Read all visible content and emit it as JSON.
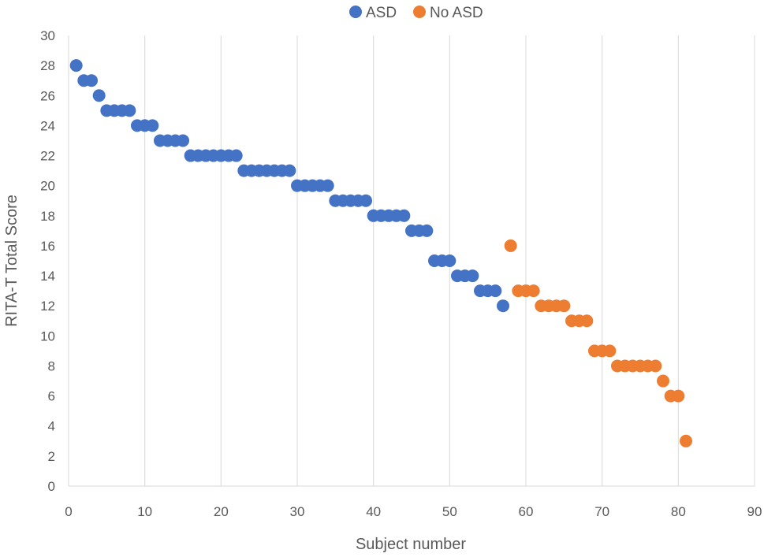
{
  "chart_data": {
    "type": "scatter",
    "title": "",
    "xlabel": "Subject number",
    "ylabel": "RITA-T Total Score",
    "xlim": [
      0,
      90
    ],
    "ylim": [
      0,
      30
    ],
    "xticks": [
      "0",
      "10",
      "20",
      "30",
      "40",
      "50",
      "60",
      "70",
      "80",
      "90"
    ],
    "yticks": [
      "0",
      "2",
      "4",
      "6",
      "8",
      "10",
      "12",
      "14",
      "16",
      "18",
      "20",
      "22",
      "24",
      "26",
      "28",
      "30"
    ],
    "grid": "vertical",
    "legend_position": "top-center",
    "series": [
      {
        "name": "ASD",
        "color": "#4472c4",
        "x": [
          1,
          2,
          3,
          4,
          5,
          6,
          7,
          8,
          9,
          10,
          11,
          12,
          13,
          14,
          15,
          16,
          17,
          18,
          19,
          20,
          21,
          22,
          23,
          24,
          25,
          26,
          27,
          28,
          29,
          30,
          31,
          32,
          33,
          34,
          35,
          36,
          37,
          38,
          39,
          40,
          41,
          42,
          43,
          44,
          45,
          46,
          47,
          48,
          49,
          50,
          51,
          52,
          53,
          54,
          55,
          56,
          57
        ],
        "y": [
          28,
          27,
          27,
          26,
          25,
          25,
          25,
          25,
          24,
          24,
          24,
          23,
          23,
          23,
          23,
          22,
          22,
          22,
          22,
          22,
          22,
          22,
          21,
          21,
          21,
          21,
          21,
          21,
          21,
          20,
          20,
          20,
          20,
          20,
          19,
          19,
          19,
          19,
          19,
          18,
          18,
          18,
          18,
          18,
          17,
          17,
          17,
          15,
          15,
          15,
          14,
          14,
          14,
          13,
          13,
          13,
          12
        ]
      },
      {
        "name": "No ASD",
        "color": "#ed7d31",
        "x": [
          58,
          59,
          60,
          61,
          62,
          63,
          64,
          65,
          66,
          67,
          68,
          69,
          70,
          71,
          72,
          73,
          74,
          75,
          76,
          77,
          78,
          79,
          80,
          81
        ],
        "y": [
          16,
          13,
          13,
          13,
          12,
          12,
          12,
          12,
          11,
          11,
          11,
          9,
          9,
          9,
          8,
          8,
          8,
          8,
          8,
          8,
          7,
          6,
          6,
          3
        ]
      }
    ]
  }
}
